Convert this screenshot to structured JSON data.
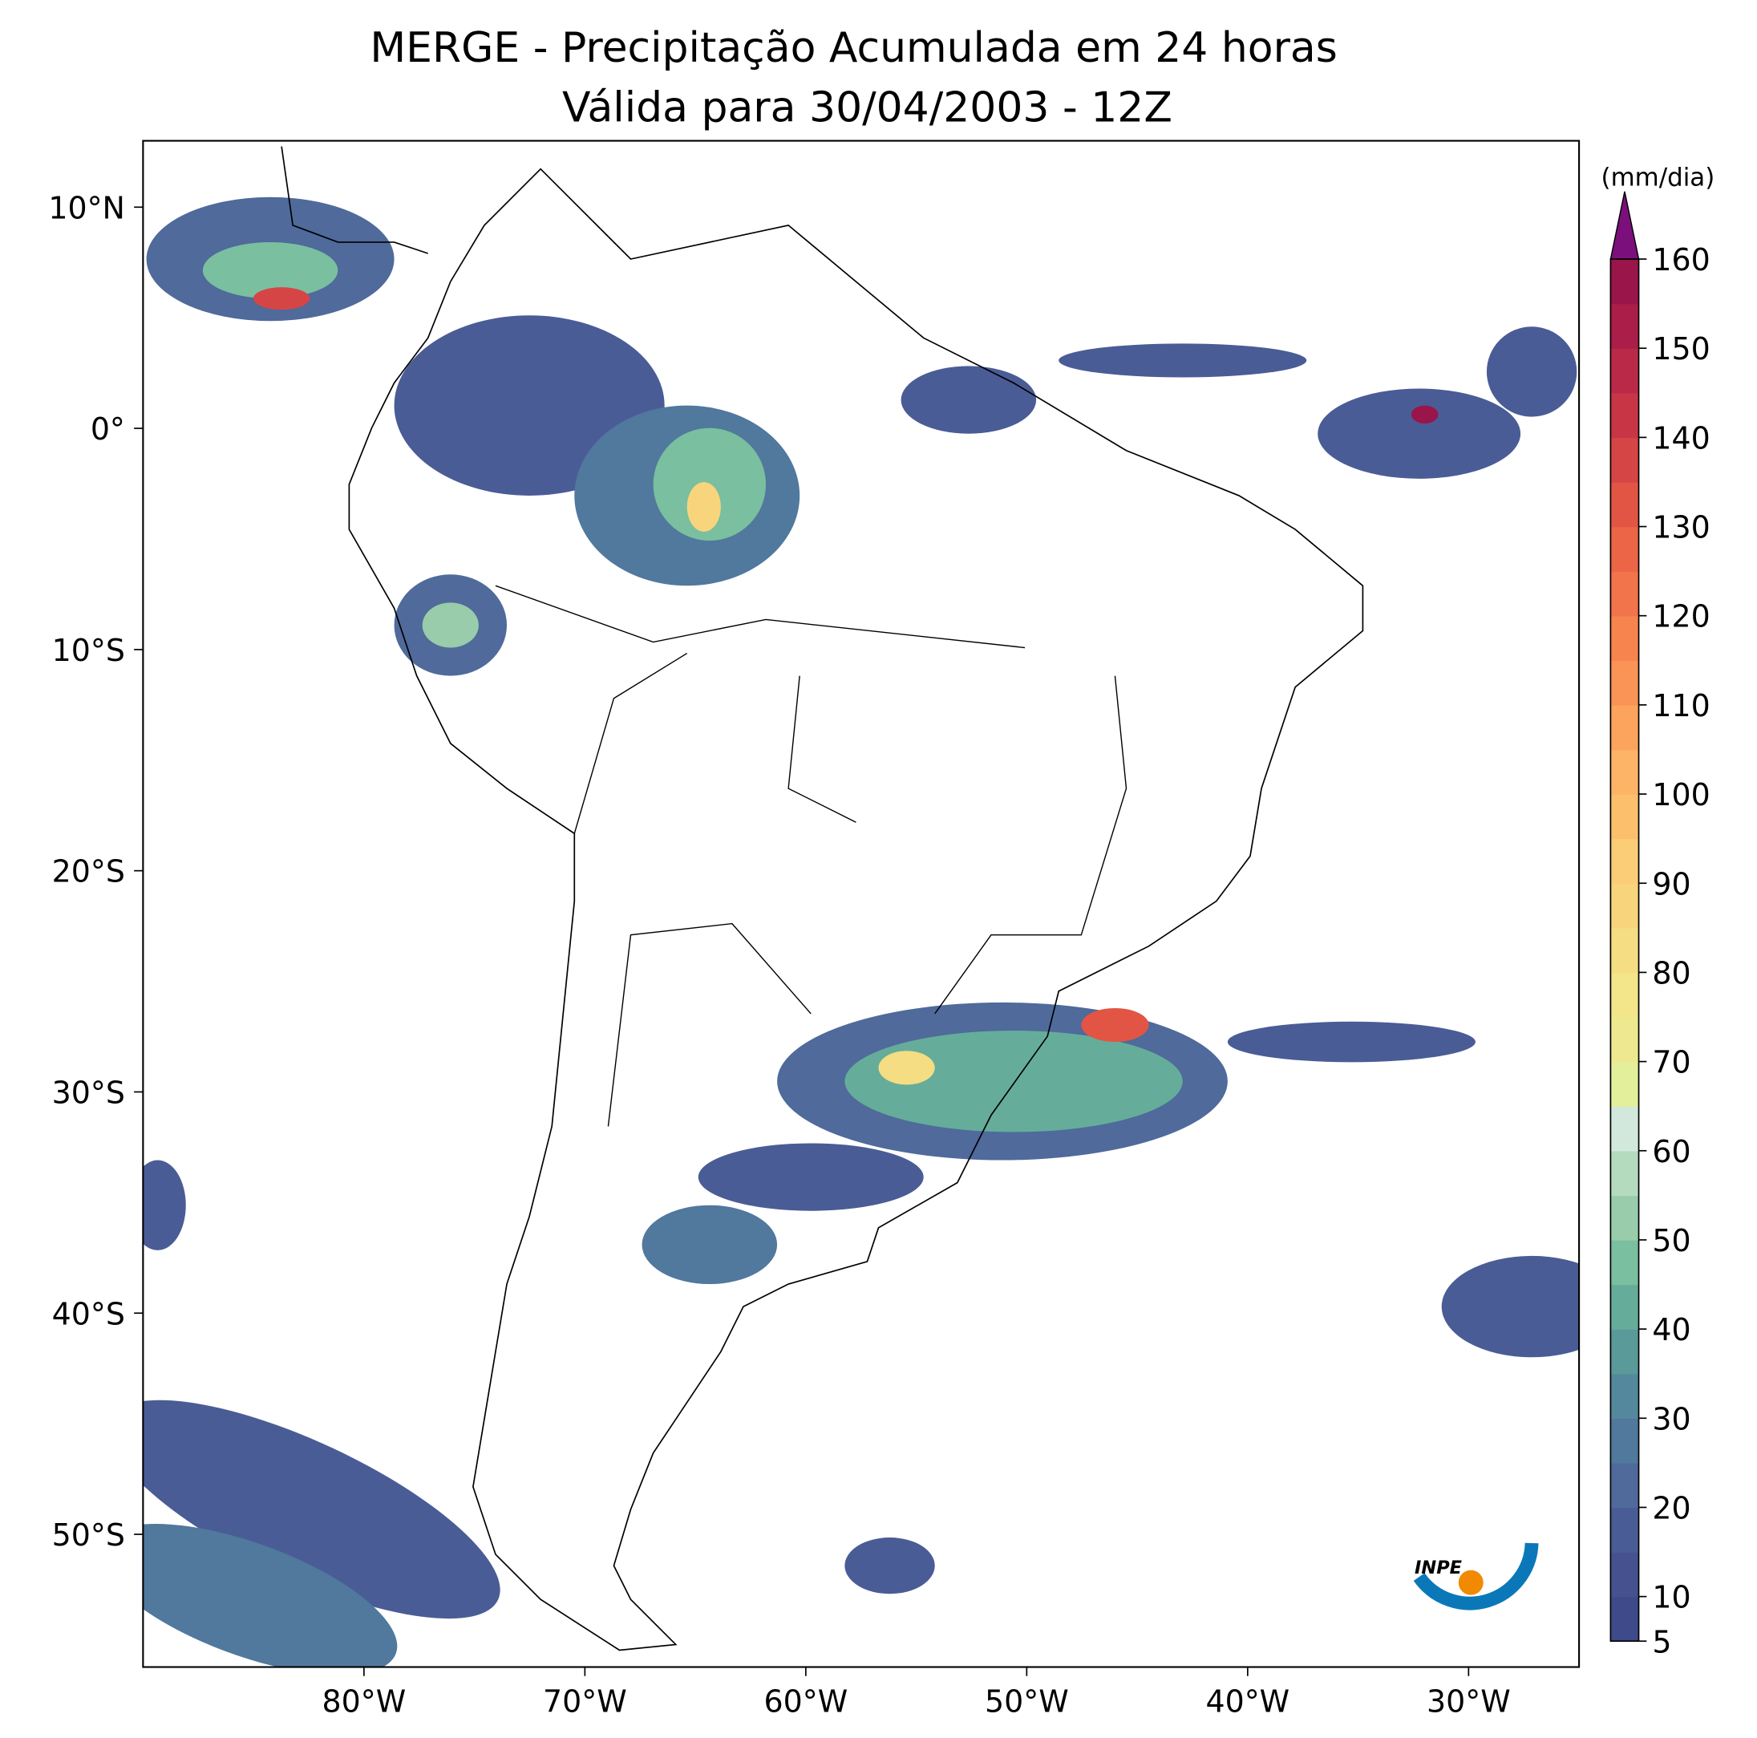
{
  "map": {
    "title": "MERGE - Precipitação Acumulada em 24 horas",
    "subtitle": "Válida para 30/04/2003 - 12Z",
    "xlim": [
      -90,
      -25
    ],
    "ylim": [
      -56,
      13
    ],
    "xticks": [
      {
        "value": -80,
        "label": "80°W"
      },
      {
        "value": -70,
        "label": "70°W"
      },
      {
        "value": -60,
        "label": "60°W"
      },
      {
        "value": -50,
        "label": "50°W"
      },
      {
        "value": -40,
        "label": "40°W"
      },
      {
        "value": -30,
        "label": "30°W"
      }
    ],
    "yticks": [
      {
        "value": 10,
        "label": "10°N"
      },
      {
        "value": 0,
        "label": "0°"
      },
      {
        "value": -10,
        "label": "10°S"
      },
      {
        "value": -20,
        "label": "20°S"
      },
      {
        "value": -30,
        "label": "30°S"
      },
      {
        "value": -40,
        "label": "40°S"
      },
      {
        "value": -50,
        "label": "50°S"
      }
    ],
    "colorbar": {
      "label": "(mm/dia)",
      "ticks": [
        5,
        10,
        20,
        30,
        40,
        50,
        60,
        70,
        80,
        90,
        100,
        110,
        120,
        130,
        140,
        150,
        160
      ],
      "levels": [
        5,
        10,
        15,
        20,
        25,
        30,
        35,
        40,
        45,
        50,
        55,
        60,
        65,
        70,
        75,
        80,
        85,
        90,
        95,
        100,
        105,
        110,
        115,
        120,
        125,
        130,
        135,
        140,
        145,
        150,
        155,
        160
      ],
      "colors": [
        "#3f4a8a",
        "#45528f",
        "#4a5c96",
        "#4f6a9b",
        "#51789d",
        "#54889c",
        "#5a9a99",
        "#65ad9a",
        "#7abf9f",
        "#98ccaa",
        "#b5dbbf",
        "#d2e8dd",
        "#e3ef9a",
        "#eee990",
        "#f2e58a",
        "#f5dd83",
        "#f8d57d",
        "#fbcd76",
        "#fcc06d",
        "#fdb466",
        "#fca35d",
        "#fa9356",
        "#f7844f",
        "#f2744a",
        "#ec6546",
        "#e25544",
        "#d64545",
        "#c83646",
        "#ba2a48",
        "#aa1e49",
        "#9a154a"
      ],
      "over_color": "#7b0f7b"
    },
    "logo_text": "INPE"
  }
}
